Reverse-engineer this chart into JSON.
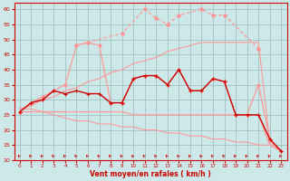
{
  "x": [
    0,
    1,
    2,
    3,
    4,
    5,
    6,
    7,
    8,
    9,
    10,
    11,
    12,
    13,
    14,
    15,
    16,
    17,
    18,
    19,
    20,
    21,
    22,
    23
  ],
  "line_dark": [
    26,
    29,
    30,
    33,
    32,
    33,
    32,
    32,
    29,
    29,
    37,
    38,
    38,
    35,
    40,
    33,
    33,
    37,
    36,
    25,
    25,
    25,
    17,
    13
  ],
  "line_upper_env": [
    26,
    29,
    31,
    33,
    35,
    48,
    49,
    48,
    29,
    29,
    37,
    38,
    38,
    35,
    40,
    33,
    33,
    37,
    36,
    25,
    25,
    35,
    17,
    13
  ],
  "line_rafales": [
    null,
    null,
    null,
    null,
    null,
    48,
    49,
    null,
    null,
    52,
    null,
    60,
    57,
    55,
    58,
    null,
    60,
    58,
    58,
    null,
    null,
    47,
    null,
    null
  ],
  "line_diag_up": [
    27,
    28,
    30,
    31,
    33,
    34,
    36,
    37,
    39,
    40,
    42,
    43,
    44,
    46,
    47,
    48,
    49,
    49,
    49,
    49,
    49,
    49,
    16,
    13
  ],
  "line_diag_down": [
    27,
    27,
    26,
    25,
    24,
    23,
    23,
    22,
    22,
    21,
    21,
    20,
    20,
    19,
    19,
    18,
    18,
    17,
    17,
    16,
    16,
    15,
    15,
    13
  ],
  "line_flat": [
    26,
    26,
    26,
    26,
    26,
    26,
    26,
    26,
    26,
    26,
    25,
    25,
    25,
    25,
    25,
    25,
    25,
    25,
    25,
    25,
    25,
    25,
    15,
    13
  ],
  "x_arrows": [
    0,
    1,
    2,
    3,
    4,
    5,
    6,
    7,
    8,
    9,
    10,
    11,
    12,
    13,
    14,
    15,
    16,
    17,
    18,
    19,
    20,
    21,
    22,
    23
  ],
  "xlabel": "Vent moyen/en rafales ( km/h )",
  "ylim": [
    10,
    62
  ],
  "xlim": [
    -0.5,
    23.5
  ],
  "yticks": [
    10,
    15,
    20,
    25,
    30,
    35,
    40,
    45,
    50,
    55,
    60
  ],
  "xticks": [
    0,
    1,
    2,
    3,
    4,
    5,
    6,
    7,
    8,
    9,
    10,
    11,
    12,
    13,
    14,
    15,
    16,
    17,
    18,
    19,
    20,
    21,
    22,
    23
  ],
  "bg_color": "#cde8e8",
  "dark_red": "#cc0000",
  "light_red": "#ff9999",
  "mid_red": "#ee5555",
  "grid_color": "#99bbbb"
}
